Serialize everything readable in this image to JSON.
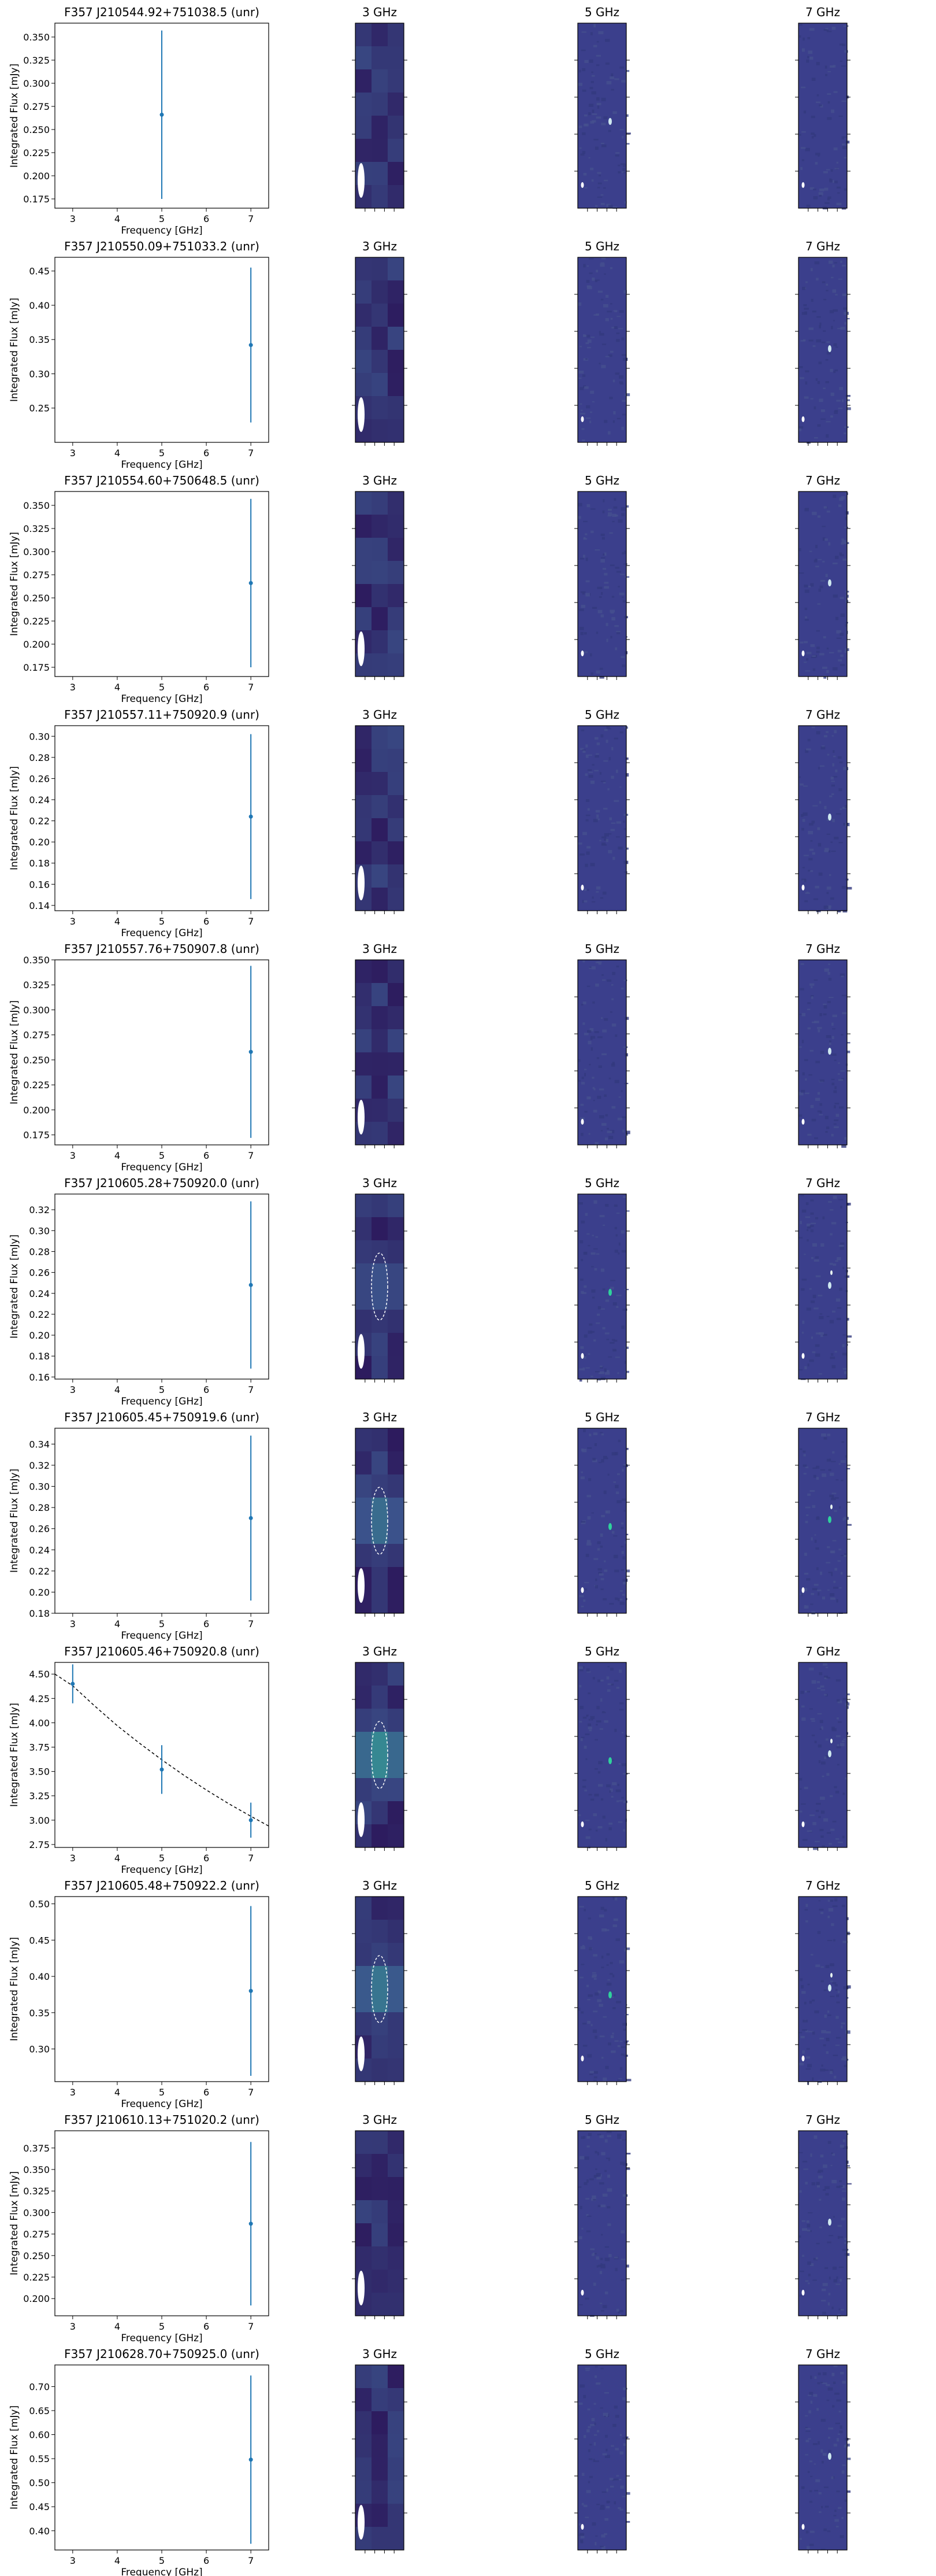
{
  "colors": {
    "errorbar": "#1f77b4",
    "fit_line": "#000000",
    "image_background": "#3b3f8c",
    "image_dark": "#2d1b5e",
    "image_bright": "#2fd29c",
    "beam": "#ffffff"
  },
  "panel_headers": [
    "3 GHz",
    "5 GHz",
    "7 GHz"
  ],
  "chart_data": [
    {
      "type": "scatter",
      "title": "F357 J210544.92+751038.5 (unr)",
      "xlabel": "Frequency [GHz]",
      "ylabel": "Integrated Flux [mJy]",
      "xlim": [
        2.6,
        7.4
      ],
      "ylim": [
        0.165,
        0.365
      ],
      "xticks": [
        3,
        4,
        5,
        6,
        7
      ],
      "yticks": [
        0.175,
        0.2,
        0.225,
        0.25,
        0.275,
        0.3,
        0.325,
        0.35
      ],
      "yticklabels": [
        "0.175",
        "0.200",
        "0.225",
        "0.250",
        "0.275",
        "0.300",
        "0.325",
        "0.350"
      ],
      "points": [
        {
          "x": 5,
          "y": 0.266,
          "err": 0.091
        }
      ],
      "fit": false,
      "images": {
        "3": {
          "blob": 0,
          "ellipse": false
        },
        "5": {
          "blob": 0.5,
          "ellipse": false
        },
        "7": {
          "blob": 0,
          "ellipse": false
        }
      }
    },
    {
      "type": "scatter",
      "title": "F357 J210550.09+751033.2 (unr)",
      "xlabel": "Frequency [GHz]",
      "ylabel": "Integrated Flux [mJy]",
      "xlim": [
        2.6,
        7.4
      ],
      "ylim": [
        0.2,
        0.47
      ],
      "xticks": [
        3,
        4,
        5,
        6,
        7
      ],
      "yticks": [
        0.25,
        0.3,
        0.35,
        0.4,
        0.45
      ],
      "yticklabels": [
        "0.25",
        "0.30",
        "0.35",
        "0.40",
        "0.45"
      ],
      "points": [
        {
          "x": 7,
          "y": 0.342,
          "err": 0.113
        }
      ],
      "fit": false,
      "images": {
        "3": {
          "blob": 0,
          "ellipse": false
        },
        "5": {
          "blob": 0,
          "ellipse": false
        },
        "7": {
          "blob": 0.4,
          "ellipse": false
        }
      }
    },
    {
      "type": "scatter",
      "title": "F357 J210554.60+750648.5 (unr)",
      "xlabel": "Frequency [GHz]",
      "ylabel": "Integrated Flux [mJy]",
      "xlim": [
        2.6,
        7.4
      ],
      "ylim": [
        0.165,
        0.365
      ],
      "xticks": [
        3,
        4,
        5,
        6,
        7
      ],
      "yticks": [
        0.175,
        0.2,
        0.225,
        0.25,
        0.275,
        0.3,
        0.325,
        0.35
      ],
      "yticklabels": [
        "0.175",
        "0.200",
        "0.225",
        "0.250",
        "0.275",
        "0.300",
        "0.325",
        "0.350"
      ],
      "points": [
        {
          "x": 7,
          "y": 0.266,
          "err": 0.091
        }
      ],
      "fit": false,
      "images": {
        "3": {
          "blob": 0,
          "ellipse": false
        },
        "5": {
          "blob": 0,
          "ellipse": false
        },
        "7": {
          "blob": 0.3,
          "ellipse": false
        }
      }
    },
    {
      "type": "scatter",
      "title": "F357 J210557.11+750920.9 (unr)",
      "xlabel": "Frequency [GHz]",
      "ylabel": "Integrated Flux [mJy]",
      "xlim": [
        2.6,
        7.4
      ],
      "ylim": [
        0.135,
        0.31
      ],
      "xticks": [
        3,
        4,
        5,
        6,
        7
      ],
      "yticks": [
        0.14,
        0.16,
        0.18,
        0.2,
        0.22,
        0.24,
        0.26,
        0.28,
        0.3
      ],
      "yticklabels": [
        "0.14",
        "0.16",
        "0.18",
        "0.20",
        "0.22",
        "0.24",
        "0.26",
        "0.28",
        "0.30"
      ],
      "points": [
        {
          "x": 7,
          "y": 0.224,
          "err": 0.078
        }
      ],
      "fit": false,
      "images": {
        "3": {
          "blob": 0,
          "ellipse": false
        },
        "5": {
          "blob": 0,
          "ellipse": false
        },
        "7": {
          "blob": 0.3,
          "ellipse": false
        }
      }
    },
    {
      "type": "scatter",
      "title": "F357 J210557.76+750907.8 (unr)",
      "xlabel": "Frequency [GHz]",
      "ylabel": "Integrated Flux [mJy]",
      "xlim": [
        2.6,
        7.4
      ],
      "ylim": [
        0.165,
        0.35
      ],
      "xticks": [
        3,
        4,
        5,
        6,
        7
      ],
      "yticks": [
        0.175,
        0.2,
        0.225,
        0.25,
        0.275,
        0.3,
        0.325,
        0.35
      ],
      "yticklabels": [
        "0.175",
        "0.200",
        "0.225",
        "0.250",
        "0.275",
        "0.300",
        "0.325",
        "0.350"
      ],
      "points": [
        {
          "x": 7,
          "y": 0.258,
          "err": 0.086
        }
      ],
      "fit": false,
      "images": {
        "3": {
          "blob": 0,
          "ellipse": false
        },
        "5": {
          "blob": 0,
          "ellipse": false
        },
        "7": {
          "blob": 0.3,
          "ellipse": false
        }
      }
    },
    {
      "type": "scatter",
      "title": "F357 J210605.28+750920.0 (unr)",
      "xlabel": "Frequency [GHz]",
      "ylabel": "Integrated Flux [mJy]",
      "xlim": [
        2.6,
        7.4
      ],
      "ylim": [
        0.158,
        0.335
      ],
      "xticks": [
        3,
        4,
        5,
        6,
        7
      ],
      "yticks": [
        0.16,
        0.18,
        0.2,
        0.22,
        0.24,
        0.26,
        0.28,
        0.3,
        0.32
      ],
      "yticklabels": [
        "0.16",
        "0.18",
        "0.20",
        "0.22",
        "0.24",
        "0.26",
        "0.28",
        "0.30",
        "0.32"
      ],
      "points": [
        {
          "x": 7,
          "y": 0.248,
          "err": 0.08
        }
      ],
      "fit": false,
      "images": {
        "3": {
          "blob": 0.55,
          "ellipse": true
        },
        "5": {
          "blob": 0.8,
          "ellipse": false
        },
        "7": {
          "blob": 0.6,
          "ellipse": false
        }
      }
    },
    {
      "type": "scatter",
      "title": "F357 J210605.45+750919.6 (unr)",
      "xlabel": "Frequency [GHz]",
      "ylabel": "Integrated Flux [mJy]",
      "xlim": [
        2.6,
        7.4
      ],
      "ylim": [
        0.18,
        0.355
      ],
      "xticks": [
        3,
        4,
        5,
        6,
        7
      ],
      "yticks": [
        0.18,
        0.2,
        0.22,
        0.24,
        0.26,
        0.28,
        0.3,
        0.32,
        0.34
      ],
      "yticklabels": [
        "0.18",
        "0.20",
        "0.22",
        "0.24",
        "0.26",
        "0.28",
        "0.30",
        "0.32",
        "0.34"
      ],
      "points": [
        {
          "x": 7,
          "y": 0.27,
          "err": 0.078
        }
      ],
      "fit": false,
      "images": {
        "3": {
          "blob": 0.7,
          "ellipse": true
        },
        "5": {
          "blob": 0.8,
          "ellipse": false
        },
        "7": {
          "blob": 0.7,
          "ellipse": false
        }
      }
    },
    {
      "type": "scatter",
      "title": "F357 J210605.46+750920.8 (unr)",
      "xlabel": "Frequency [GHz]",
      "ylabel": "Integrated Flux [mJy]",
      "xlim": [
        2.6,
        7.4
      ],
      "ylim": [
        2.72,
        4.62
      ],
      "xticks": [
        3,
        4,
        5,
        6,
        7
      ],
      "yticks": [
        2.75,
        3.0,
        3.25,
        3.5,
        3.75,
        4.0,
        4.25,
        4.5
      ],
      "yticklabels": [
        "2.75",
        "3.00",
        "3.25",
        "3.50",
        "3.75",
        "4.00",
        "4.25",
        "4.50"
      ],
      "points": [
        {
          "x": 3,
          "y": 4.4,
          "err": 0.2
        },
        {
          "x": 5,
          "y": 3.52,
          "err": 0.25
        },
        {
          "x": 7,
          "y": 3.0,
          "err": 0.18
        }
      ],
      "fit": true,
      "fit_curve": {
        "x": [
          2.6,
          3.0,
          3.5,
          4.0,
          4.5,
          5.0,
          5.5,
          6.0,
          6.5,
          7.0,
          7.4
        ],
        "y": [
          4.5,
          4.38,
          4.17,
          3.97,
          3.79,
          3.62,
          3.46,
          3.31,
          3.17,
          3.04,
          2.94
        ]
      },
      "images": {
        "3": {
          "blob": 0.85,
          "ellipse": true
        },
        "5": {
          "blob": 0.8,
          "ellipse": false
        },
        "7": {
          "blob": 0.6,
          "ellipse": false
        }
      }
    },
    {
      "type": "scatter",
      "title": "F357 J210605.48+750922.2 (unr)",
      "xlabel": "Frequency [GHz]",
      "ylabel": "Integrated Flux [mJy]",
      "xlim": [
        2.6,
        7.4
      ],
      "ylim": [
        0.255,
        0.51
      ],
      "xticks": [
        3,
        4,
        5,
        6,
        7
      ],
      "yticks": [
        0.3,
        0.35,
        0.4,
        0.45,
        0.5
      ],
      "yticklabels": [
        "0.30",
        "0.35",
        "0.40",
        "0.45",
        "0.50"
      ],
      "points": [
        {
          "x": 7,
          "y": 0.38,
          "err": 0.117
        }
      ],
      "fit": false,
      "images": {
        "3": {
          "blob": 0.75,
          "ellipse": true
        },
        "5": {
          "blob": 0.8,
          "ellipse": false
        },
        "7": {
          "blob": 0.6,
          "ellipse": false
        }
      }
    },
    {
      "type": "scatter",
      "title": "F357 J210610.13+751020.2 (unr)",
      "xlabel": "Frequency [GHz]",
      "ylabel": "Integrated Flux [mJy]",
      "xlim": [
        2.6,
        7.4
      ],
      "ylim": [
        0.18,
        0.395
      ],
      "xticks": [
        3,
        4,
        5,
        6,
        7
      ],
      "yticks": [
        0.2,
        0.225,
        0.25,
        0.275,
        0.3,
        0.325,
        0.35,
        0.375
      ],
      "yticklabels": [
        "0.200",
        "0.225",
        "0.250",
        "0.275",
        "0.300",
        "0.325",
        "0.350",
        "0.375"
      ],
      "points": [
        {
          "x": 7,
          "y": 0.287,
          "err": 0.095
        }
      ],
      "fit": false,
      "images": {
        "3": {
          "blob": 0,
          "ellipse": false
        },
        "5": {
          "blob": 0,
          "ellipse": false
        },
        "7": {
          "blob": 0.3,
          "ellipse": false
        }
      }
    },
    {
      "type": "scatter",
      "title": "F357 J210628.70+750925.0 (unr)",
      "xlabel": "Frequency [GHz]",
      "ylabel": "Integrated Flux [mJy]",
      "xlim": [
        2.6,
        7.4
      ],
      "ylim": [
        0.36,
        0.745
      ],
      "xticks": [
        3,
        4,
        5,
        6,
        7
      ],
      "yticks": [
        0.4,
        0.45,
        0.5,
        0.55,
        0.6,
        0.65,
        0.7
      ],
      "yticklabels": [
        "0.40",
        "0.45",
        "0.50",
        "0.55",
        "0.60",
        "0.65",
        "0.70"
      ],
      "points": [
        {
          "x": 7,
          "y": 0.548,
          "err": 0.175
        }
      ],
      "fit": false,
      "images": {
        "3": {
          "blob": 0,
          "ellipse": false
        },
        "5": {
          "blob": 0,
          "ellipse": false
        },
        "7": {
          "blob": 0.4,
          "ellipse": false
        }
      }
    }
  ]
}
